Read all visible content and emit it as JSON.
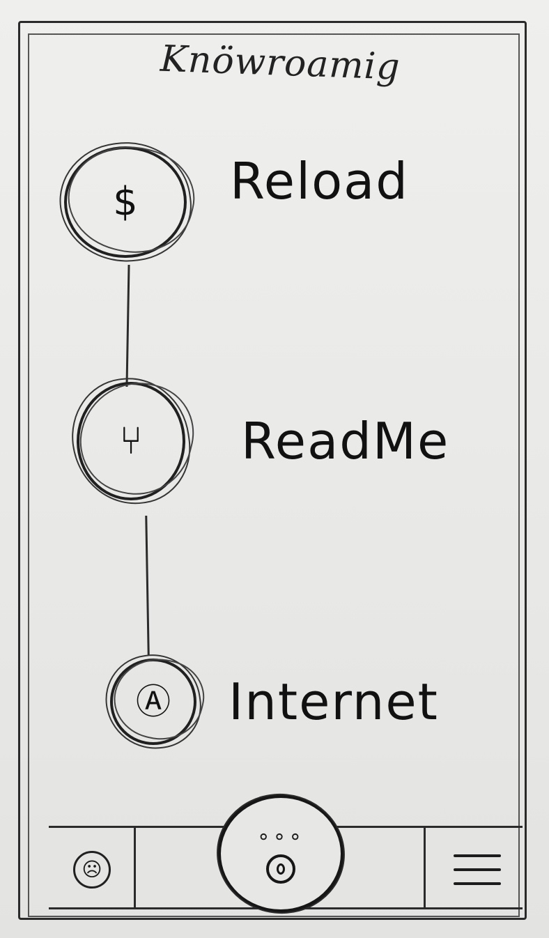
{
  "header": {
    "title": "Knöwroamig"
  },
  "timeline": {
    "nodes": [
      {
        "icon": "dollar-icon",
        "glyph": "$",
        "label": "Reload"
      },
      {
        "icon": "branch-icon",
        "glyph": "⑂",
        "label": "ReadMe"
      },
      {
        "icon": "globe-icon",
        "glyph": "Ⓐ",
        "label": "Internet"
      }
    ]
  },
  "bottom_nav": {
    "left_icon": "face-icon",
    "left_glyph": "☹",
    "center_icon": "paw-icon",
    "center_glyph": "∘∘∘",
    "right_icon": "hamburger-menu-icon"
  }
}
